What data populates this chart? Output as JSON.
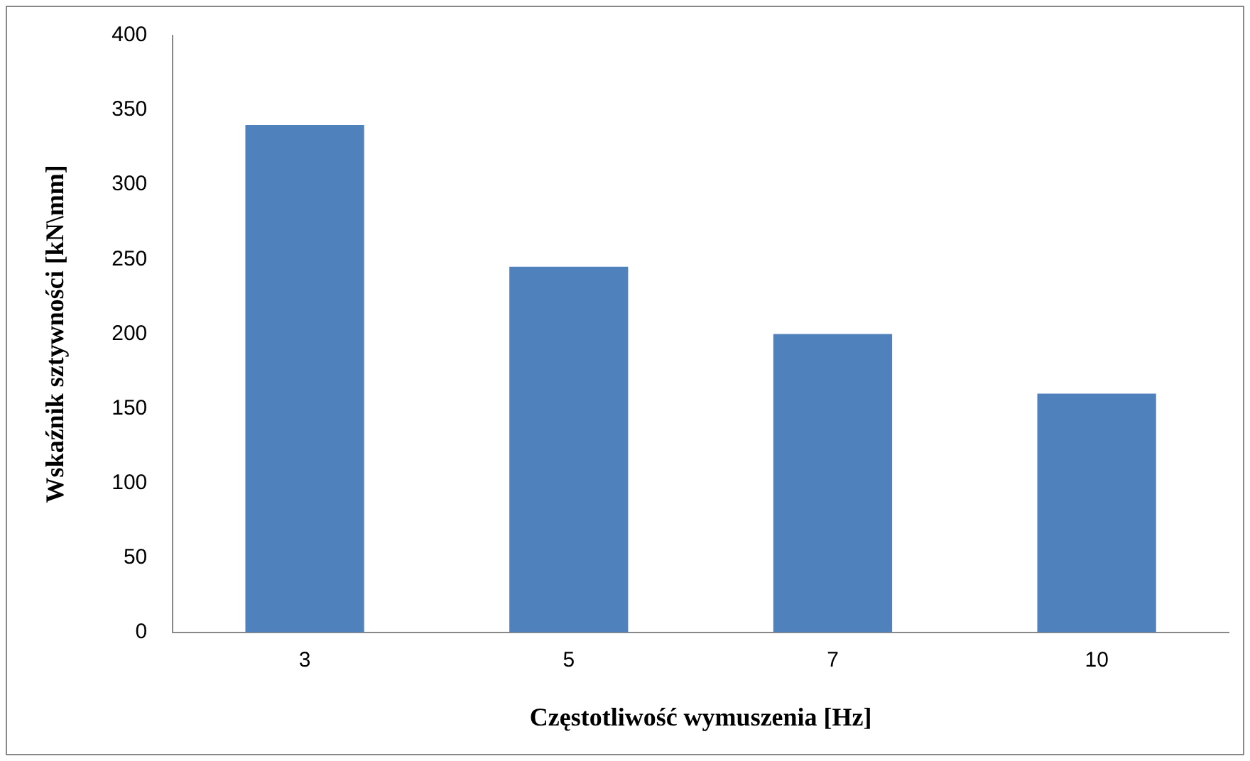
{
  "chart_data": {
    "type": "bar",
    "xlabel": "Częstotliwość wymuszenia [Hz]",
    "ylabel": "Wskaźnik sztywności [kN\\mm]",
    "categories": [
      "3",
      "5",
      "7",
      "10"
    ],
    "values": [
      340,
      245,
      200,
      160
    ],
    "color": "#4f81bd",
    "ylim": [
      0,
      400
    ],
    "yticks": [
      0,
      50,
      100,
      150,
      200,
      250,
      300,
      350,
      400
    ],
    "grid": false,
    "legend": false
  }
}
